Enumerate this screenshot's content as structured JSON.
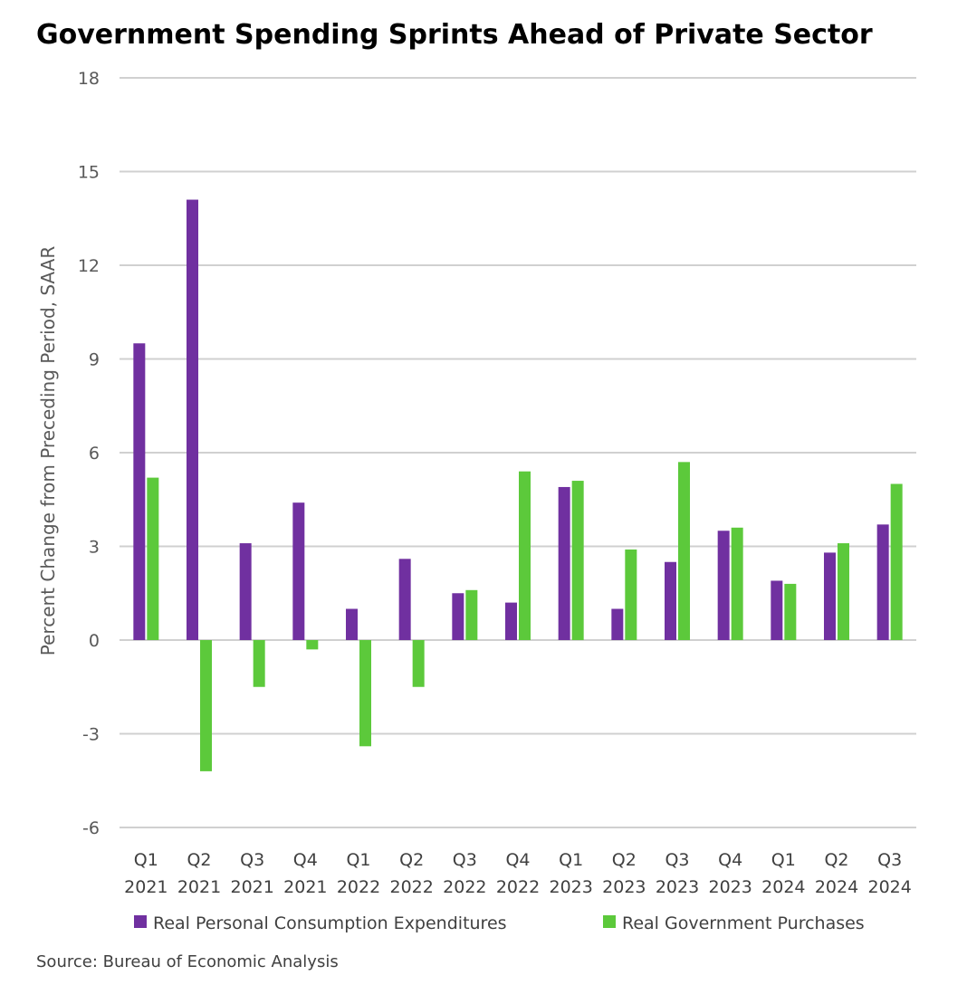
{
  "chart_data": {
    "type": "bar",
    "title": "Government Spending Sprints Ahead of Private Sector",
    "ylabel": "Percent Change from Preceding Period, SAAR",
    "xlabel": "",
    "ylim": [
      -6,
      18
    ],
    "yticks": [
      18,
      15,
      12,
      9,
      6,
      3,
      0,
      -3,
      -6
    ],
    "grid": true,
    "legend_position": "bottom",
    "categories": [
      [
        "Q1",
        "2021"
      ],
      [
        "Q2",
        "2021"
      ],
      [
        "Q3",
        "2021"
      ],
      [
        "Q4",
        "2021"
      ],
      [
        "Q1",
        "2022"
      ],
      [
        "Q2",
        "2022"
      ],
      [
        "Q3",
        "2022"
      ],
      [
        "Q4",
        "2022"
      ],
      [
        "Q1",
        "2023"
      ],
      [
        "Q2",
        "2023"
      ],
      [
        "Q3",
        "2023"
      ],
      [
        "Q4",
        "2023"
      ],
      [
        "Q1",
        "2024"
      ],
      [
        "Q2",
        "2024"
      ],
      [
        "Q3",
        "2024"
      ]
    ],
    "series": [
      {
        "name": "Real Personal Consumption Expenditures",
        "color": "#7030a0",
        "values": [
          9.5,
          14.1,
          3.1,
          4.4,
          1.0,
          2.6,
          1.5,
          1.2,
          4.9,
          1.0,
          2.5,
          3.5,
          1.9,
          2.8,
          3.7
        ]
      },
      {
        "name": "Real Government Purchases",
        "color": "#5cc93b",
        "values": [
          5.2,
          -4.2,
          -1.5,
          -0.3,
          -3.4,
          -1.5,
          1.6,
          5.4,
          5.1,
          2.9,
          5.7,
          3.6,
          1.8,
          3.1,
          5.0
        ]
      }
    ],
    "source": "Source: Bureau of Economic Analysis"
  }
}
